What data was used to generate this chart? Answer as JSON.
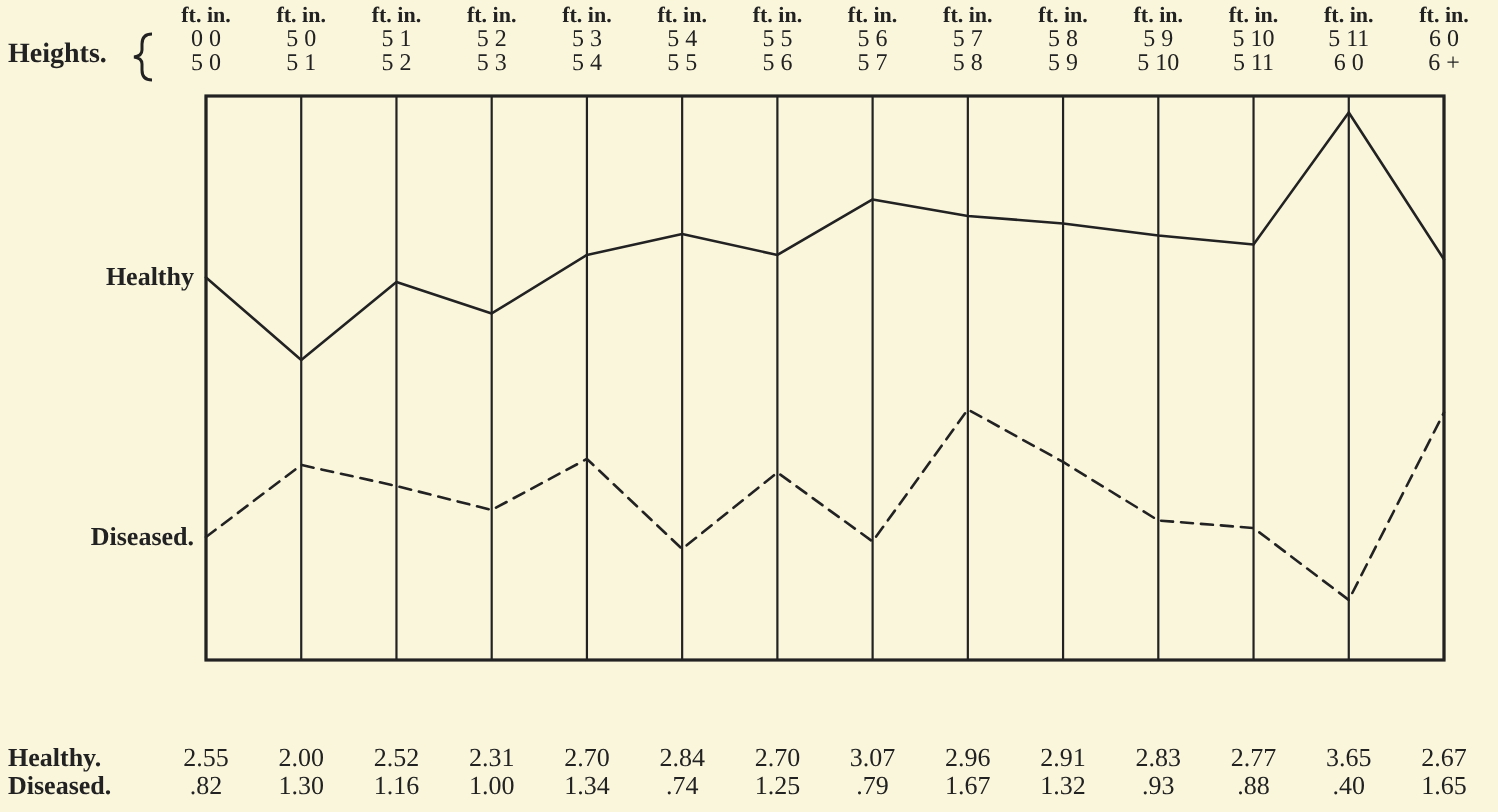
{
  "chart_data": {
    "type": "line",
    "xlabel": "Heights.",
    "categories": [
      "ft. in.\n0 0\n5 0",
      "ft. in.\n5 0\n5 1",
      "ft. in.\n5 1\n5 2",
      "ft. in.\n5 2\n5 3",
      "ft. in.\n5 3\n5 4",
      "ft. in.\n5 4\n5 5",
      "ft. in.\n5 5\n5 6",
      "ft. in.\n5 6\n5 7",
      "ft. in.\n5 7\n5 8",
      "ft. in.\n5 8\n5 9",
      "ft. in.\n5 9\n5 10",
      "ft. in.\n5 10\n5 11",
      "ft. in.\n5 11\n6 0",
      "ft. in.\n6 0\n6 +"
    ],
    "series": [
      {
        "name": "Healthy",
        "color": "#222222",
        "line_style": "solid",
        "values": [
          2.55,
          2.0,
          2.52,
          2.31,
          2.7,
          2.84,
          2.7,
          3.07,
          2.96,
          2.91,
          2.83,
          2.77,
          3.65,
          2.67
        ],
        "value_labels": [
          "2.55",
          "2.00",
          "2.52",
          "2.31",
          "2.70",
          "2.84",
          "2.70",
          "3.07",
          "2.96",
          "2.91",
          "2.83",
          "2.77",
          "3.65",
          "2.67"
        ]
      },
      {
        "name": "Diseased.",
        "color": "#222222",
        "line_style": "dashed",
        "values": [
          0.82,
          1.3,
          1.16,
          1.0,
          1.34,
          0.74,
          1.25,
          0.79,
          1.67,
          1.32,
          0.93,
          0.88,
          0.4,
          1.65
        ],
        "value_labels": [
          ".82",
          "1.30",
          "1.16",
          "1.00",
          "1.34",
          ".74",
          "1.25",
          ".79",
          "1.67",
          "1.32",
          ".93",
          ".88",
          ".40",
          "1.65"
        ]
      }
    ],
    "annotations": [
      "Healthy.",
      "Diseased."
    ],
    "grid": "x",
    "marker": "none"
  }
}
